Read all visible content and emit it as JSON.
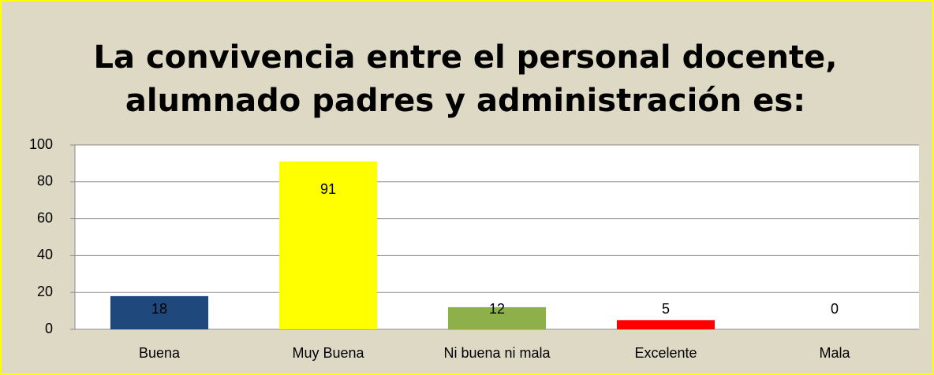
{
  "chart_data": {
    "type": "bar",
    "title": [
      "La convivencia entre el personal docente,",
      "alumnado padres y administración es:"
    ],
    "categories": [
      "Buena",
      "Muy Buena",
      "Ni buena ni mala",
      "Excelente",
      "Mala"
    ],
    "values": [
      18,
      91,
      12,
      5,
      0
    ],
    "colors": [
      "#1f497d",
      "#ffff00",
      "#8db04a",
      "#ff0000",
      "#4f81bd"
    ],
    "ylim": [
      0,
      100
    ],
    "yticks": [
      0,
      20,
      40,
      60,
      80,
      100
    ],
    "grid": true
  }
}
